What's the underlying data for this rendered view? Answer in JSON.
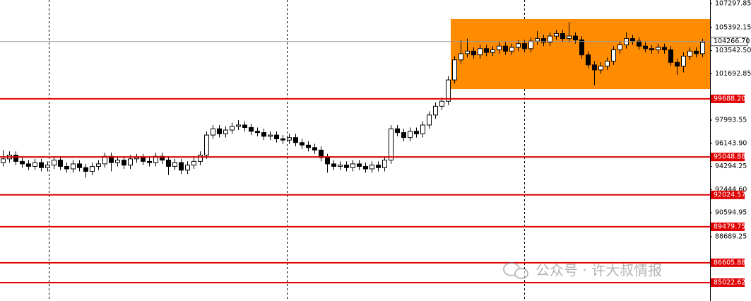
{
  "chart_data": {
    "type": "candlestick",
    "ylim": [
      83554,
      107580
    ],
    "yticks": [
      107297.85,
      105392.15,
      {
        "value": 103542.5,
        "label": "103542.50"
      },
      101692.85,
      97993.55,
      {
        "value": 96143.9,
        "label": "96143.90"
      },
      94294.25,
      {
        "value": 92444.6,
        "label": "92444.60"
      },
      90594.95,
      88689.25
    ],
    "levels": [
      {
        "value": 99688.2,
        "label": "99688.20"
      },
      95048.88,
      92024.57,
      89479.75,
      86605.88,
      85022.62
    ],
    "level_color": "#e00000",
    "last_price": {
      "value": 104266.7,
      "label": "104266.70"
    },
    "zone": {
      "top": 106060,
      "bottom": 100470,
      "color": "#ff8c00"
    },
    "watermark": "公众号 · 许大叔情报",
    "open": [
      94600,
      94900,
      95200,
      94700,
      94500,
      94300,
      94600,
      94200,
      94400,
      94800,
      94300,
      94100,
      94500,
      94200,
      93900,
      94300,
      94500,
      95100,
      94600,
      94800,
      94400,
      94900,
      95000,
      94700,
      94600,
      95100,
      94800,
      94300,
      94600,
      94000,
      94400,
      94700,
      95200,
      96800,
      97300,
      96900,
      97200,
      97500,
      97600,
      97400,
      97100,
      97000,
      96700,
      96800,
      96500,
      96400,
      96600,
      96200,
      96000,
      95800,
      95600,
      95000,
      94500,
      94300,
      94400,
      94200,
      94500,
      94300,
      94100,
      94400,
      94200,
      94800,
      97300,
      97000,
      96600,
      97100,
      96900,
      97600,
      98400,
      99100,
      99500,
      101200,
      102800,
      103300,
      103500,
      103200,
      103700,
      103400,
      103600,
      103900,
      103500,
      103800,
      104100,
      103700,
      104300,
      104500,
      104200,
      104700,
      104900,
      104500,
      104700,
      104400,
      103200,
      102400,
      102000,
      102300,
      102700,
      103600,
      104000,
      104500,
      104300,
      103900,
      103700,
      103600,
      103800,
      103600,
      102600,
      102300,
      103100,
      103500,
      103300
    ],
    "high": [
      95600,
      95500,
      95500,
      95000,
      94800,
      94900,
      94900,
      94700,
      95100,
      95100,
      94600,
      94800,
      94800,
      94500,
      94600,
      94800,
      95400,
      95400,
      95100,
      95100,
      95200,
      95300,
      95300,
      95000,
      95400,
      95400,
      95100,
      94900,
      94900,
      94700,
      95000,
      95500,
      97100,
      97600,
      97600,
      97500,
      97800,
      98000,
      97900,
      97700,
      97400,
      97300,
      97100,
      97100,
      96800,
      96900,
      96900,
      96500,
      96300,
      96100,
      95900,
      95300,
      94800,
      94700,
      94700,
      94800,
      94800,
      94600,
      94700,
      94700,
      95100,
      97600,
      97600,
      97300,
      97400,
      97400,
      97900,
      98700,
      99400,
      99800,
      101500,
      103100,
      104400,
      104500,
      103800,
      104000,
      104000,
      103900,
      104200,
      104200,
      104100,
      104400,
      104400,
      104600,
      105100,
      104800,
      105000,
      105200,
      105200,
      105800,
      105000,
      104700,
      103500,
      102700,
      102600,
      103000,
      103900,
      104300,
      105000,
      104800,
      104600,
      104200,
      104000,
      104100,
      104100,
      103900,
      102900,
      103400,
      103800,
      103800,
      104500
    ],
    "low": [
      94300,
      94600,
      94400,
      94200,
      94000,
      94000,
      93900,
      93900,
      94100,
      94000,
      93800,
      93800,
      93900,
      93400,
      93600,
      94000,
      94200,
      93900,
      94300,
      94100,
      94100,
      94600,
      94400,
      94300,
      94300,
      94500,
      93600,
      94000,
      93700,
      93700,
      94100,
      94400,
      94900,
      96500,
      96600,
      96600,
      96900,
      97200,
      97100,
      96800,
      96700,
      96400,
      96400,
      96200,
      96100,
      96100,
      95900,
      95700,
      95500,
      95300,
      94700,
      93800,
      94000,
      94000,
      93900,
      93900,
      94000,
      93800,
      93800,
      93900,
      93900,
      94500,
      96700,
      96300,
      96300,
      96600,
      96600,
      97300,
      98100,
      98800,
      99200,
      100900,
      102500,
      103000,
      102900,
      102900,
      103100,
      103100,
      103300,
      103200,
      103200,
      103500,
      103400,
      103400,
      104000,
      103900,
      103900,
      104400,
      104200,
      104200,
      104100,
      102900,
      102100,
      100800,
      101700,
      102000,
      102400,
      103300,
      103700,
      104000,
      103600,
      103400,
      103300,
      103300,
      103300,
      102300,
      101600,
      101800,
      102800,
      103000,
      103000
    ],
    "close": [
      94900,
      95200,
      94700,
      94500,
      94300,
      94600,
      94200,
      94400,
      94800,
      94300,
      94100,
      94500,
      94200,
      93900,
      94300,
      94500,
      95100,
      94600,
      94800,
      94400,
      94900,
      95000,
      94700,
      94600,
      95100,
      94800,
      94300,
      94600,
      94000,
      94400,
      94700,
      95200,
      96800,
      97300,
      96900,
      97200,
      97500,
      97600,
      97400,
      97100,
      97000,
      96700,
      96800,
      96500,
      96400,
      96600,
      96200,
      96000,
      95800,
      95600,
      95000,
      94500,
      94300,
      94400,
      94200,
      94500,
      94300,
      94100,
      94400,
      94200,
      94800,
      97300,
      97000,
      96600,
      97100,
      96900,
      97600,
      98400,
      99100,
      99500,
      101200,
      102800,
      103300,
      103500,
      103200,
      103700,
      103400,
      103600,
      103900,
      103500,
      103800,
      104100,
      103700,
      104300,
      104500,
      104200,
      104700,
      104900,
      104500,
      104700,
      104400,
      103200,
      102400,
      102000,
      102300,
      102700,
      103600,
      104000,
      104500,
      104300,
      103900,
      103700,
      103600,
      103800,
      103600,
      102600,
      102300,
      103100,
      103500,
      103300,
      104200
    ]
  }
}
